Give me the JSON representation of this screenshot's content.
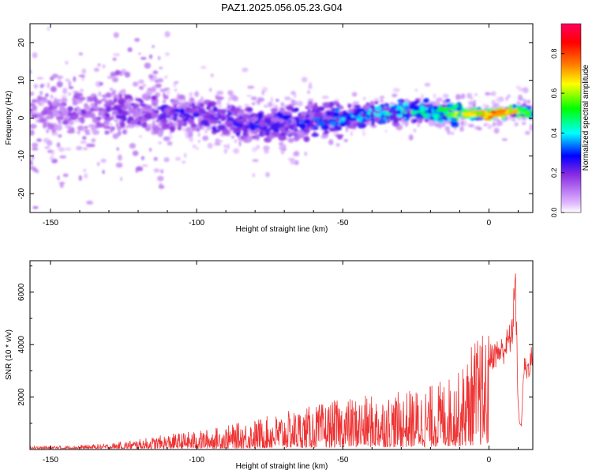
{
  "figure": {
    "title": "PAZ1.2025.056.05.23.G04"
  },
  "chart_data": [
    {
      "type": "heatmap",
      "xlabel": "Height of straight line (km)",
      "ylabel": "Frequency (Hz)",
      "xlim": [
        -157,
        15
      ],
      "ylim": [
        -25,
        25
      ],
      "x_ticks": [
        -150,
        -100,
        -50,
        0
      ],
      "y_ticks": [
        -20,
        -10,
        0,
        10,
        20
      ],
      "colorbar": {
        "label": "Normalized spectral amplitude",
        "range": [
          0,
          0.95
        ],
        "ticks": [
          "0.0",
          "0.2",
          "0.4",
          "0.6",
          "0.8"
        ],
        "colors": [
          "#ffffff",
          "#e0b8ff",
          "#8a2be2",
          "#0000ff",
          "#00ffff",
          "#00ff00",
          "#ffff00",
          "#ff8000",
          "#ff0000",
          "#ff0060"
        ]
      },
      "description_band": {
        "center_hz": [
          [
            -155,
            2
          ],
          [
            -100,
            1
          ],
          [
            -80,
            -2
          ],
          [
            -50,
            0
          ],
          [
            -30,
            2
          ],
          [
            0,
            1
          ],
          [
            10,
            2
          ],
          [
            15,
            1
          ]
        ],
        "peak_amplitude": [
          [
            -157,
            0.18
          ],
          [
            -100,
            0.28
          ],
          [
            -60,
            0.35
          ],
          [
            -40,
            0.45
          ],
          [
            -20,
            0.5
          ],
          [
            -5,
            0.75
          ],
          [
            2,
            0.95
          ],
          [
            10,
            0.7
          ],
          [
            15,
            0.5
          ]
        ]
      }
    },
    {
      "type": "line",
      "xlabel": "Height of straight line (km)",
      "ylabel": "SNR (10 * v/v)",
      "xlim": [
        -157,
        15
      ],
      "ylim": [
        0,
        7200
      ],
      "x_ticks": [
        -150,
        -100,
        -50,
        0
      ],
      "y_ticks": [
        2000,
        4000,
        6000
      ],
      "series": [
        {
          "color": "#ee3333",
          "envelope_x": [
            -157,
            -140,
            -130,
            -120,
            -110,
            -100,
            -90,
            -80,
            -70,
            -60,
            -50,
            -40,
            -30,
            -20,
            -10,
            -5,
            0,
            5,
            8,
            9,
            10,
            11,
            12,
            13,
            15
          ],
          "envelope_y": [
            100,
            130,
            180,
            300,
            450,
            550,
            700,
            900,
            1100,
            1300,
            1500,
            1600,
            1700,
            1900,
            2300,
            3300,
            3500,
            3800,
            4400,
            6800,
            1500,
            800,
            3200,
            3000,
            3600
          ]
        }
      ]
    }
  ]
}
